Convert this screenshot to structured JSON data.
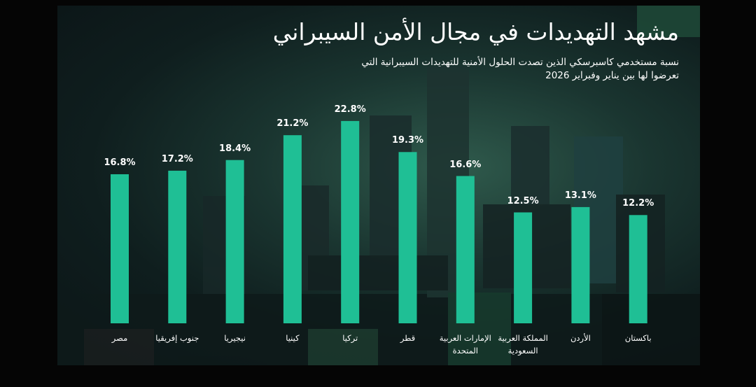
{
  "chart_data": {
    "type": "bar",
    "title": "مشهد التهديدات في مجال الأمن السيبراني",
    "subtitle": "نسبة مستخدمي كاسبرسكي الذين تصدت الحلول الأمنية للتهديدات السيبرانية التي تعرضوا لها بين يناير وفبراير 2026",
    "categories": [
      "مصر",
      "جنوب إفريقيا",
      "نيجيريا",
      "كينيا",
      "تركيا",
      "قطر",
      "الإمارات العربية المتحدة",
      "المملكة العربية السعودية",
      "الأردن",
      "باكستان"
    ],
    "values": [
      16.8,
      17.2,
      18.4,
      21.2,
      22.8,
      19.3,
      16.6,
      12.5,
      13.1,
      12.2
    ],
    "value_labels": [
      "16.8%",
      "17.2%",
      "18.4%",
      "21.2%",
      "22.8%",
      "19.3%",
      "16.6%",
      "12.5%",
      "13.1%",
      "12.2%"
    ],
    "color": "#1fbf95"
  }
}
